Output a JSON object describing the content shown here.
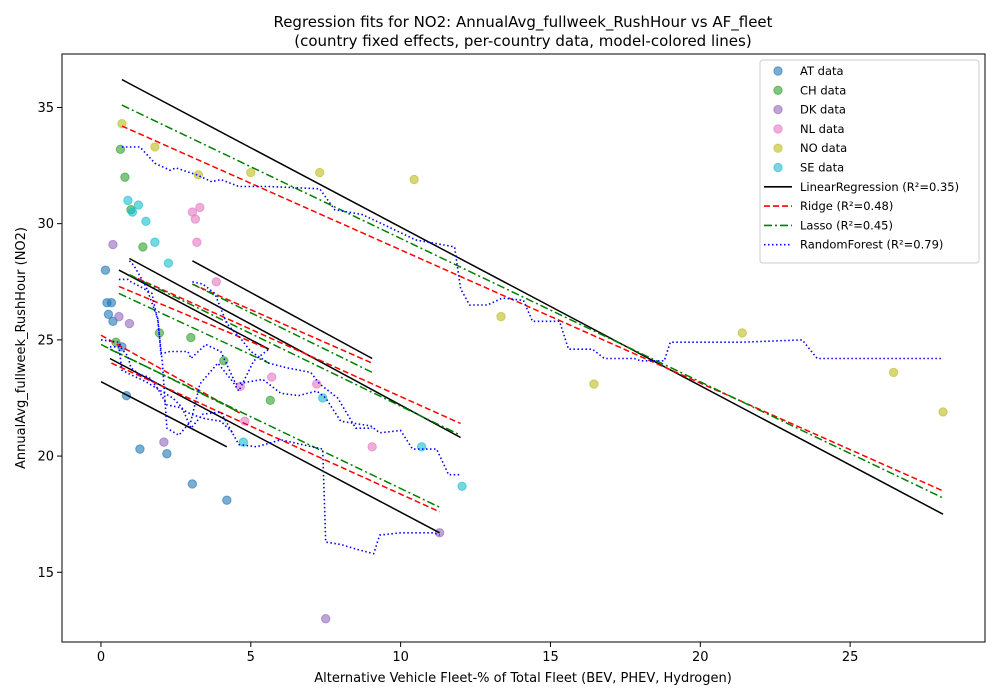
{
  "chart_data": {
    "type": "scatter",
    "title": "Regression fits for NO2: AnnualAvg_fullweek_RushHour vs AF_fleet",
    "subtitle": "(country fixed effects, per-country data, model-colored lines)",
    "xlabel": "Alternative Vehicle Fleet-% of Total Fleet (BEV, PHEV, Hydrogen)",
    "ylabel": "AnnualAvg_fullweek_RushHour (NO2)",
    "xlim": [
      -1.3,
      29.5
    ],
    "ylim": [
      12.0,
      37.3
    ],
    "xticks": [
      0,
      5,
      10,
      15,
      20,
      25
    ],
    "yticks": [
      15,
      20,
      25,
      30,
      35
    ],
    "grid": false,
    "legend_position": "top-right",
    "scatter_series": [
      {
        "name": "AT data",
        "color": "#1f77b4",
        "points": [
          [
            0.15,
            28.0
          ],
          [
            0.2,
            26.6
          ],
          [
            0.25,
            26.1
          ],
          [
            0.35,
            26.6
          ],
          [
            0.4,
            25.8
          ],
          [
            0.7,
            24.7
          ],
          [
            0.85,
            22.6
          ],
          [
            1.3,
            20.3
          ],
          [
            2.2,
            20.1
          ],
          [
            3.05,
            18.8
          ],
          [
            4.2,
            18.1
          ]
        ]
      },
      {
        "name": "CH data",
        "color": "#2ca02c",
        "points": [
          [
            0.65,
            33.2
          ],
          [
            0.8,
            32.0
          ],
          [
            1.0,
            30.6
          ],
          [
            1.4,
            29.0
          ],
          [
            1.95,
            25.3
          ],
          [
            3.0,
            25.1
          ],
          [
            4.1,
            24.1
          ],
          [
            5.65,
            22.4
          ],
          [
            0.5,
            24.9
          ]
        ]
      },
      {
        "name": "DK data",
        "color": "#9467bd",
        "points": [
          [
            0.4,
            29.1
          ],
          [
            0.6,
            26.0
          ],
          [
            0.95,
            25.7
          ],
          [
            2.1,
            20.6
          ],
          [
            11.3,
            16.7
          ],
          [
            7.5,
            13.0
          ]
        ]
      },
      {
        "name": "NL data",
        "color": "#e377c2",
        "points": [
          [
            3.05,
            30.5
          ],
          [
            3.15,
            30.2
          ],
          [
            3.3,
            30.7
          ],
          [
            3.2,
            29.2
          ],
          [
            3.85,
            27.5
          ],
          [
            4.65,
            23.0
          ],
          [
            4.8,
            21.5
          ],
          [
            5.7,
            23.4
          ],
          [
            7.2,
            23.1
          ],
          [
            9.05,
            20.4
          ]
        ]
      },
      {
        "name": "NO data",
        "color": "#bcbd22",
        "points": [
          [
            0.7,
            34.3
          ],
          [
            1.8,
            33.3
          ],
          [
            3.25,
            32.1
          ],
          [
            5.0,
            32.2
          ],
          [
            7.3,
            32.2
          ],
          [
            10.45,
            31.9
          ],
          [
            13.35,
            26.0
          ],
          [
            16.45,
            23.1
          ],
          [
            21.4,
            25.3
          ],
          [
            26.45,
            23.6
          ],
          [
            28.1,
            21.9
          ]
        ]
      },
      {
        "name": "SE data",
        "color": "#17becf",
        "points": [
          [
            0.9,
            31.0
          ],
          [
            1.05,
            30.5
          ],
          [
            1.25,
            30.8
          ],
          [
            1.5,
            30.1
          ],
          [
            1.8,
            29.2
          ],
          [
            2.25,
            28.3
          ],
          [
            4.75,
            20.6
          ],
          [
            7.4,
            22.5
          ],
          [
            10.7,
            20.4
          ],
          [
            12.05,
            18.7
          ]
        ]
      }
    ],
    "fit_series": [
      {
        "name": "LinearRegression (R²=0.35)",
        "color": "#000000",
        "style": "solid",
        "lines": [
          [
            [
              0.0,
              23.2
            ],
            [
              4.2,
              20.4
            ]
          ],
          [
            [
              0.3,
              24.2
            ],
            [
              11.3,
              16.7
            ]
          ],
          [
            [
              0.6,
              28.0
            ],
            [
              5.6,
              24.6
            ]
          ],
          [
            [
              0.95,
              28.5
            ],
            [
              12.0,
              20.8
            ]
          ],
          [
            [
              3.05,
              28.4
            ],
            [
              9.05,
              24.2
            ]
          ],
          [
            [
              0.7,
              36.2
            ],
            [
              28.1,
              17.5
            ]
          ]
        ]
      },
      {
        "name": "Ridge (R²=0.48)",
        "color": "#ff0000",
        "style": "dashed",
        "lines": [
          [
            [
              0.0,
              25.2
            ],
            [
              4.7,
              21.8
            ]
          ],
          [
            [
              0.35,
              24.0
            ],
            [
              11.3,
              17.6
            ]
          ],
          [
            [
              0.6,
              27.3
            ],
            [
              5.6,
              24.6
            ]
          ],
          [
            [
              0.95,
              27.8
            ],
            [
              12.0,
              21.4
            ]
          ],
          [
            [
              3.05,
              27.4
            ],
            [
              9.05,
              24.0
            ]
          ],
          [
            [
              0.7,
              34.2
            ],
            [
              28.1,
              18.5
            ]
          ]
        ]
      },
      {
        "name": "Lasso (R²=0.45)",
        "color": "#008000",
        "style": "dashdot",
        "lines": [
          [
            [
              0.0,
              24.8
            ],
            [
              4.6,
              21.9
            ]
          ],
          [
            [
              0.3,
              24.6
            ],
            [
              11.3,
              17.8
            ]
          ],
          [
            [
              0.6,
              27.0
            ],
            [
              5.6,
              24.0
            ]
          ],
          [
            [
              0.95,
              27.8
            ],
            [
              12.0,
              20.9
            ]
          ],
          [
            [
              3.05,
              27.4
            ],
            [
              9.05,
              23.6
            ]
          ],
          [
            [
              0.7,
              35.1
            ],
            [
              28.1,
              18.2
            ]
          ]
        ]
      },
      {
        "name": "RandomForest (R²=0.79)",
        "color": "#0000ff",
        "style": "dotted",
        "lines": [
          [
            [
              0.0,
              25.0
            ],
            [
              0.6,
              24.9
            ],
            [
              0.7,
              24.6
            ],
            [
              0.9,
              24.3
            ],
            [
              1.0,
              23.8
            ],
            [
              1.3,
              23.5
            ],
            [
              1.6,
              23.4
            ],
            [
              1.9,
              22.9
            ],
            [
              2.2,
              22.2
            ],
            [
              2.6,
              22.1
            ],
            [
              3.0,
              21.8
            ],
            [
              3.5,
              21.6
            ],
            [
              4.0,
              21.5
            ],
            [
              4.4,
              21.0
            ]
          ],
          [
            [
              0.3,
              24.7
            ],
            [
              0.6,
              24.7
            ],
            [
              0.7,
              23.7
            ],
            [
              1.0,
              23.5
            ],
            [
              1.5,
              23.2
            ],
            [
              2.0,
              22.8
            ],
            [
              2.4,
              22.5
            ],
            [
              2.7,
              22.1
            ],
            [
              3.0,
              21.2
            ],
            [
              3.4,
              21.8
            ],
            [
              4.0,
              21.9
            ],
            [
              4.6,
              20.5
            ],
            [
              5.2,
              20.4
            ],
            [
              6.0,
              20.7
            ],
            [
              7.4,
              20.3
            ],
            [
              7.5,
              16.3
            ],
            [
              8.0,
              16.2
            ],
            [
              8.5,
              16.0
            ],
            [
              9.1,
              15.8
            ],
            [
              9.3,
              16.6
            ],
            [
              10.0,
              16.7
            ],
            [
              11.1,
              16.7
            ],
            [
              11.3,
              16.6
            ]
          ],
          [
            [
              0.6,
              27.6
            ],
            [
              0.9,
              27.6
            ],
            [
              1.0,
              27.5
            ],
            [
              1.3,
              27.3
            ],
            [
              1.7,
              27.0
            ],
            [
              1.9,
              25.8
            ],
            [
              2.05,
              24.0
            ],
            [
              2.2,
              21.2
            ],
            [
              2.6,
              20.9
            ],
            [
              3.0,
              21.5
            ],
            [
              3.3,
              23.1
            ],
            [
              3.9,
              24.0
            ],
            [
              4.4,
              23.2
            ],
            [
              4.6,
              22.8
            ],
            [
              5.1,
              24.1
            ],
            [
              5.6,
              24.6
            ]
          ],
          [
            [
              0.95,
              28.4
            ],
            [
              1.1,
              28.2
            ],
            [
              1.5,
              27.3
            ],
            [
              1.9,
              25.9
            ],
            [
              2.0,
              24.4
            ],
            [
              2.3,
              24.5
            ],
            [
              2.9,
              24.5
            ],
            [
              3.0,
              24.2
            ],
            [
              3.5,
              24.8
            ],
            [
              4.0,
              24.5
            ],
            [
              4.5,
              23.1
            ],
            [
              5.4,
              23.3
            ],
            [
              6.0,
              22.7
            ],
            [
              6.6,
              22.6
            ],
            [
              7.2,
              22.8
            ],
            [
              7.5,
              22.5
            ],
            [
              8.0,
              21.5
            ],
            [
              9.0,
              21.3
            ],
            [
              9.3,
              21.0
            ],
            [
              10.0,
              21.1
            ],
            [
              10.4,
              20.3
            ],
            [
              11.2,
              20.3
            ],
            [
              11.6,
              19.2
            ],
            [
              12.0,
              19.2
            ]
          ],
          [
            [
              3.05,
              27.5
            ],
            [
              3.4,
              27.4
            ],
            [
              3.8,
              27.0
            ],
            [
              4.2,
              25.7
            ],
            [
              4.7,
              25.0
            ],
            [
              5.0,
              24.5
            ],
            [
              5.6,
              24.0
            ],
            [
              6.2,
              23.8
            ],
            [
              7.0,
              23.6
            ],
            [
              7.3,
              23.1
            ],
            [
              7.9,
              22.5
            ],
            [
              8.5,
              21.2
            ],
            [
              9.05,
              21.2
            ]
          ],
          [
            [
              0.7,
              33.3
            ],
            [
              1.3,
              33.3
            ],
            [
              1.8,
              32.6
            ],
            [
              2.3,
              32.3
            ],
            [
              2.5,
              32.4
            ],
            [
              3.2,
              32.1
            ],
            [
              3.7,
              31.8
            ],
            [
              4.0,
              31.9
            ],
            [
              4.6,
              31.6
            ],
            [
              5.6,
              31.6
            ],
            [
              7.3,
              31.5
            ],
            [
              7.8,
              30.6
            ],
            [
              8.7,
              30.4
            ],
            [
              9.2,
              30.1
            ],
            [
              10.5,
              29.3
            ],
            [
              11.8,
              29.0
            ],
            [
              12.0,
              27.2
            ],
            [
              12.3,
              26.5
            ],
            [
              12.9,
              26.5
            ],
            [
              13.4,
              26.8
            ],
            [
              14.1,
              26.7
            ],
            [
              14.4,
              25.8
            ],
            [
              15.3,
              25.8
            ],
            [
              15.6,
              24.6
            ],
            [
              16.4,
              24.6
            ],
            [
              16.8,
              24.2
            ],
            [
              17.8,
              24.2
            ],
            [
              18.0,
              24.1
            ],
            [
              18.8,
              24.1
            ],
            [
              19.0,
              24.9
            ],
            [
              21.4,
              24.9
            ],
            [
              23.4,
              25.0
            ],
            [
              23.9,
              24.2
            ],
            [
              28.1,
              24.2
            ]
          ]
        ]
      }
    ]
  }
}
